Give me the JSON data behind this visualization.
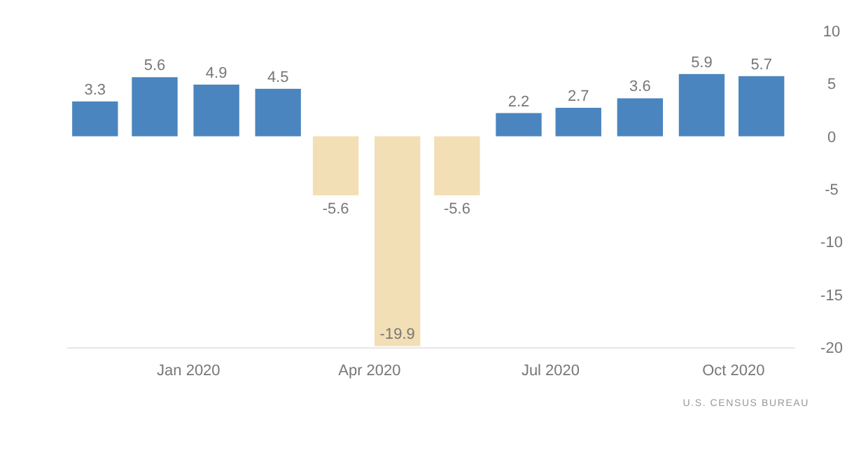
{
  "chart_data": {
    "type": "bar",
    "x": [
      "2019-11-15",
      "2019-12-15",
      "2020-01-15",
      "2020-02-15",
      "2020-03-15",
      "2020-04-15",
      "2020-05-15",
      "2020-06-15",
      "2020-07-15",
      "2020-08-15",
      "2020-09-15",
      "2020-10-15"
    ],
    "values": [
      3.3,
      5.6,
      4.9,
      4.5,
      -5.6,
      -19.9,
      -5.6,
      2.2,
      2.7,
      3.6,
      5.9,
      5.7
    ],
    "colors": [
      "#4a85bf",
      "#4a85bf",
      "#4a85bf",
      "#4a85bf",
      "#f3dfb5",
      "#f3dfb5",
      "#f3dfb5",
      "#4a85bf",
      "#4a85bf",
      "#4a85bf",
      "#4a85bf",
      "#4a85bf"
    ],
    "data_labels": true,
    "xlim": [
      "2019-11-01",
      "2020-11-01"
    ],
    "xticks": [
      {
        "value": "2020-01-01",
        "label": "Jan 2020"
      },
      {
        "value": "2020-04-01",
        "label": "Apr 2020"
      },
      {
        "value": "2020-07-01",
        "label": "Jul 2020"
      },
      {
        "value": "2020-10-01",
        "label": "Oct 2020"
      }
    ],
    "ylim": [
      -20,
      10
    ],
    "yticks": [
      -20,
      -15,
      -10,
      -5,
      0,
      5,
      10
    ],
    "grid": false,
    "annotations": [
      "U.S. CENSUS BUREAU"
    ]
  }
}
